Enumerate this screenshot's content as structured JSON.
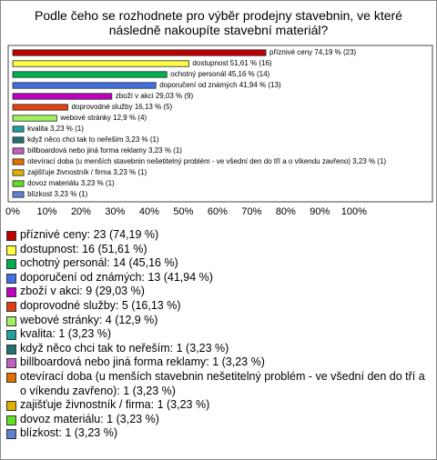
{
  "chart_data": {
    "type": "bar",
    "title": "Podle čeho se rozhodnete pro výběr prodejny stavebnin, ve které následně nakoupíte stavební materiál?",
    "categories": [
      "příznivé ceny",
      "dostupnost",
      "ochotný personál",
      "doporučení od známých",
      "zboží v akci",
      "doprovodné služby",
      "webové stránky",
      "kvalita",
      "když něco chci tak to neřeším",
      "billboardová nebo jiná forma reklamy",
      "otevírací doba (u menších stavebnin nešetitelný problém - ve všední den do tří a o víkendu zavřeno)",
      "zajišťuje živnostník / firma",
      "dovoz materiálu",
      "blízkost"
    ],
    "values": [
      74.19,
      51.61,
      45.16,
      41.94,
      29.03,
      16.13,
      12.9,
      3.23,
      3.23,
      3.23,
      3.23,
      3.23,
      3.23,
      3.23
    ],
    "value_labels": [
      "příznivé ceny 74,19 % (23)",
      "dostupnost 51,61 % (16)",
      "ochotný personál 45,16 % (14)",
      "doporučení od známých 41,94 % (13)",
      "zboží v akci 29,03 % (9)",
      "doprovodné služby 16,13 % (5)",
      "webové stránky 12,9 % (4)",
      "kvalita 3,23 % (1)",
      "když něco chci tak to neřeším 3,23 % (1)",
      "billboardová nebo jiná forma reklamy 3,23 % (1)",
      "otevírací doba (u menších stavebnin nešetitelný problém - ve všední den do tří a o víkendu zavřeno) 3,23 % (1)",
      "zajišťuje živnostník / firma 3,23 % (1)",
      "dovoz materiálu 3,23 % (1)",
      "blízkost 3,23 % (1)"
    ],
    "legend_labels": [
      "příznivé ceny: 23 (74,19 %)",
      "dostupnost: 16 (51,61 %)",
      "ochotný personál: 14 (45,16 %)",
      "doporučení od známých: 13 (41,94 %)",
      "zboží v akci: 9 (29,03 %)",
      "doprovodné služby: 5 (16,13 %)",
      "webové stránky: 4 (12,9 %)",
      "kvalita: 1 (3,23 %)",
      "když něco chci tak to neřeším: 1 (3,23 %)",
      "billboardová nebo jiná forma reklamy: 1 (3,23 %)",
      "otevírací doba (u menších stavebnin nešetitelný problém - ve všední den do tří a o víkendu zavřeno): 1 (3,23 %)",
      "zajišťuje živnostník / firma: 1 (3,23 %)",
      "dovoz materiálu: 1 (3,23 %)",
      "blízkost: 1 (3,23 %)"
    ],
    "colors": [
      "#c00000",
      "#ffff40",
      "#00b050",
      "#4070e0",
      "#c000c0",
      "#e04010",
      "#a0f060",
      "#20a0a0",
      "#207070",
      "#c060c0",
      "#e07000",
      "#e0b000",
      "#60e020",
      "#6080d0"
    ],
    "xlim": [
      0,
      123
    ],
    "xticks": [
      {
        "value": 0,
        "label": "0%"
      },
      {
        "value": 10,
        "label": "10%"
      },
      {
        "value": 20,
        "label": "20%"
      },
      {
        "value": 30,
        "label": "30%"
      },
      {
        "value": 40,
        "label": "40%"
      },
      {
        "value": 50,
        "label": "50%"
      },
      {
        "value": 60,
        "label": "60%"
      },
      {
        "value": 70,
        "label": "70%"
      },
      {
        "value": 80,
        "label": "80%"
      },
      {
        "value": 90,
        "label": "90%"
      },
      {
        "value": 100,
        "label": "100%"
      }
    ]
  }
}
